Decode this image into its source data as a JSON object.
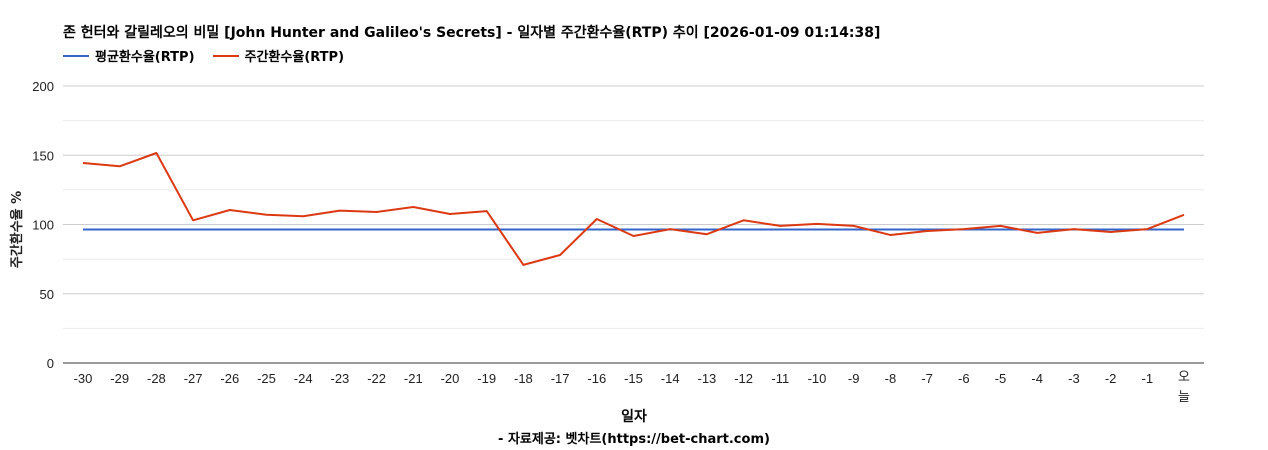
{
  "header": {
    "title": "존 헌터와 갈릴레오의 비밀 [John Hunter and Galileo's Secrets] - 일자별 주간환수율(RTP) 추이 [2026-01-09 01:14:38]"
  },
  "legend": [
    {
      "label": "평균환수율(RTP)",
      "color": "#3366cc"
    },
    {
      "label": "주간환수율(RTP)",
      "color": "#dc3912"
    }
  ],
  "axes": {
    "ylabel": "주간환수율 %",
    "xlabel": "일자",
    "yticks": [
      "0",
      "50",
      "100",
      "150",
      "200"
    ]
  },
  "footer": {
    "source": "- 자료제공: 벳차트(https://bet-chart.com)"
  },
  "chart_data": {
    "type": "line",
    "title": "존 헌터와 갈릴레오의 비밀 [John Hunter and Galileo's Secrets] - 일자별 주간환수율(RTP) 추이 [2026-01-09 01:14:38]",
    "xlabel": "일자",
    "ylabel": "주간환수율 %",
    "ylim": [
      0,
      200
    ],
    "yticks": [
      0,
      50,
      100,
      150,
      200
    ],
    "grid": true,
    "legend_position": "top-left",
    "categories": [
      "-30",
      "-29",
      "-28",
      "-27",
      "-26",
      "-25",
      "-24",
      "-23",
      "-22",
      "-21",
      "-20",
      "-19",
      "-18",
      "-17",
      "-16",
      "-15",
      "-14",
      "-13",
      "-12",
      "-11",
      "-10",
      "-9",
      "-8",
      "-7",
      "-6",
      "-5",
      "-4",
      "-3",
      "-2",
      "-1",
      "오늘"
    ],
    "series": [
      {
        "name": "평균환수율(RTP)",
        "color": "#3366cc",
        "values": [
          96.4,
          96.4,
          96.4,
          96.4,
          96.4,
          96.4,
          96.4,
          96.4,
          96.4,
          96.4,
          96.4,
          96.4,
          96.4,
          96.4,
          96.4,
          96.4,
          96.4,
          96.4,
          96.4,
          96.4,
          96.4,
          96.4,
          96.4,
          96.4,
          96.4,
          96.4,
          96.4,
          96.4,
          96.4,
          96.4,
          96.4
        ]
      },
      {
        "name": "주간환수율(RTP)",
        "color": "#dc3912",
        "values": [
          144.4,
          142,
          151.6,
          103,
          110.5,
          107,
          106,
          110,
          109,
          112.6,
          107.6,
          109.7,
          70.8,
          78,
          104,
          91.7,
          96.7,
          93,
          103,
          99,
          100.4,
          99,
          92.4,
          95.3,
          96.7,
          99,
          93.9,
          96.7,
          94.6,
          96.7,
          107
        ]
      }
    ]
  }
}
